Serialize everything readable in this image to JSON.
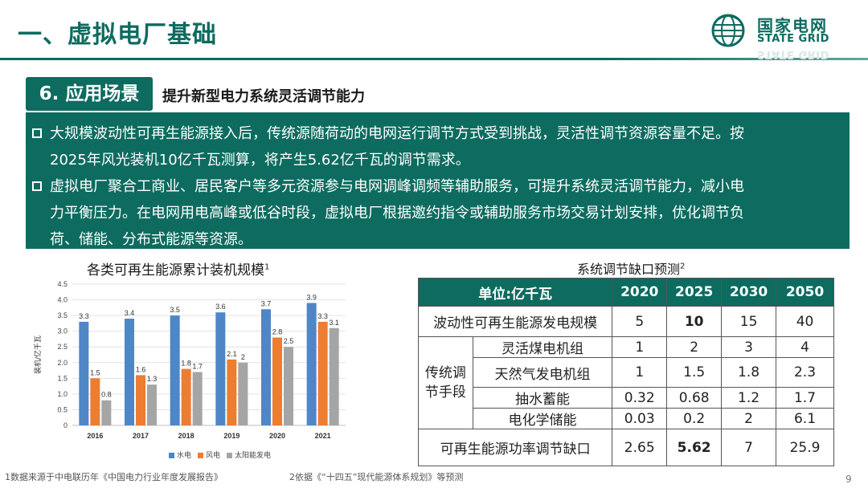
{
  "header": {
    "title": "一、虚拟电厂基础",
    "logo_cn": "国家电网",
    "logo_en": "STATE GRID"
  },
  "section": {
    "tag": "6. 应用场景",
    "subtitle": "提升新型电力系统灵活调节能力"
  },
  "bullets": [
    {
      "lines": [
        "大规模波动性可再生能源接入后，传统源随荷动的电网运行调节方式受到挑战，灵活性调节资源容量不足。按",
        "2025年风光装机10亿千瓦测算，将产生5.62亿千瓦的调节需求。"
      ]
    },
    {
      "lines": [
        "虚拟电厂聚合工商业、居民客户等多元资源参与电网调峰调频等辅助服务，可提升系统灵活调节能力，减小电",
        "力平衡压力。在电网用电高峰或低谷时段，虚拟电厂根据邀约指令或辅助服务市场交易计划安排，优化调节负",
        "荷、储能、分布式能源等资源。"
      ]
    }
  ],
  "chart_data": {
    "type": "bar",
    "title": "各类可再生能源累计装机规模",
    "title_sup": "1",
    "ylabel": "装机/亿千瓦",
    "categories": [
      "2016",
      "2017",
      "2018",
      "2019",
      "2020",
      "2021"
    ],
    "ylim": [
      0,
      4.5
    ],
    "yticks": [
      "0",
      "0.5",
      "1.0",
      "1.5",
      "2.0",
      "2.5",
      "3.0",
      "3.5",
      "4.0",
      "4.5"
    ],
    "grid": true,
    "legend_position": "bottom",
    "series": [
      {
        "name": "水电",
        "color": "#4f86c6",
        "values": [
          3.3,
          3.4,
          3.5,
          3.6,
          3.7,
          3.9
        ]
      },
      {
        "name": "风电",
        "color": "#ed7d31",
        "values": [
          1.5,
          1.6,
          1.8,
          2.1,
          2.8,
          3.3
        ]
      },
      {
        "name": "太阳能发电",
        "color": "#a5a5a5",
        "values": [
          0.8,
          1.3,
          1.7,
          2.0,
          2.5,
          3.1
        ]
      }
    ]
  },
  "table": {
    "title": "系统调节缺口预测",
    "title_sup": "2",
    "header": [
      "单位:亿千瓦",
      "2020",
      "2025",
      "2030",
      "2050"
    ],
    "row_wave": {
      "label": "波动性可再生能源发电规模",
      "values": [
        "5",
        "10",
        "15",
        "40"
      ]
    },
    "group_label_1": "传统调",
    "group_label_2": "节手段",
    "group_rows": [
      {
        "label": "灵活煤电机组",
        "values": [
          "1",
          "2",
          "3",
          "4"
        ]
      },
      {
        "label": "天然气发电机组",
        "values": [
          "1",
          "1.5",
          "1.8",
          "2.3"
        ]
      },
      {
        "label": "抽水蓄能",
        "values": [
          "0.32",
          "0.68",
          "1.2",
          "1.7"
        ]
      },
      {
        "label": "电化学储能",
        "values": [
          "0.03",
          "0.2",
          "2",
          "6.1"
        ]
      }
    ],
    "row_gap": {
      "label": "可再生能源功率调节缺口",
      "values": [
        "2.65",
        "5.62",
        "7",
        "25.9"
      ]
    }
  },
  "footer": {
    "note1": "1数据来源于中电联历年《中国电力行业年度发展报告》",
    "note2": "2依据《“十四五”现代能源体系规划》等预测",
    "page": "9"
  },
  "colors": {
    "brand_green": "#0d6b5f"
  }
}
